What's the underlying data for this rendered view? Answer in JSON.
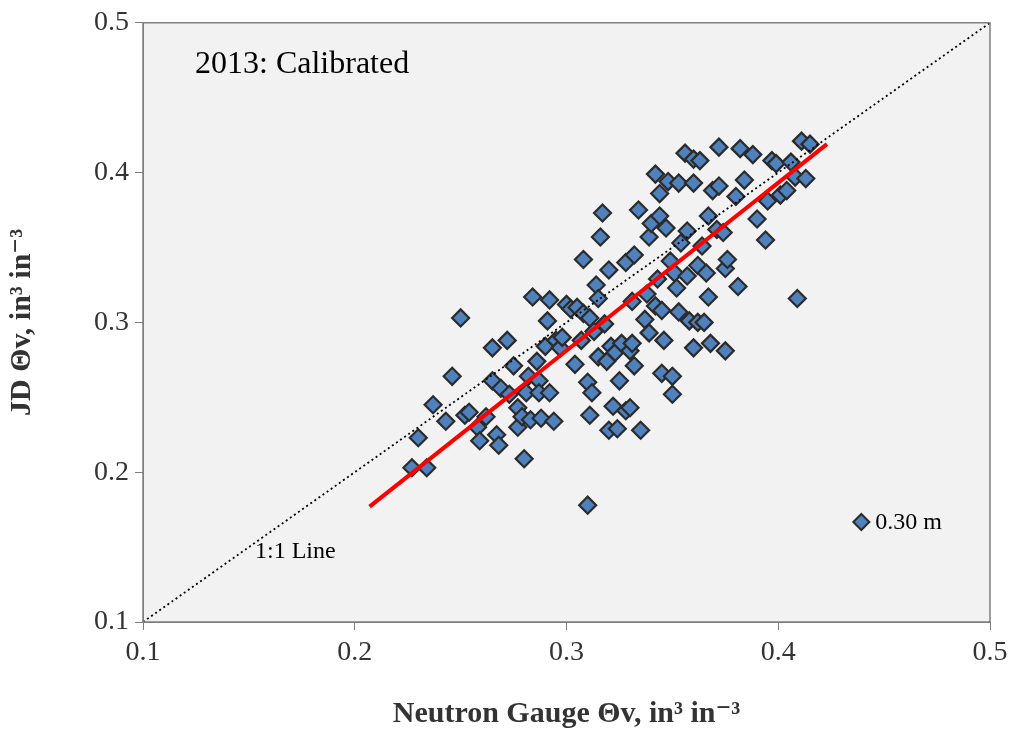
{
  "chart_data": {
    "type": "scatter",
    "xlabel": "Neutron Gauge Θv, in³ in⁻³",
    "ylabel": "JD Θv, in³ in⁻³",
    "xlim": [
      0.1,
      0.5
    ],
    "ylim": [
      0.1,
      0.5
    ],
    "xticks": [
      0.1,
      0.2,
      0.3,
      0.4,
      0.5
    ],
    "yticks": [
      0.1,
      0.2,
      0.3,
      0.4,
      0.5
    ],
    "grid": false,
    "legend": "bottom right",
    "marker": "diamond",
    "annotations": [
      "2013: Calibrated",
      "1:1 Line"
    ],
    "series": [
      {
        "name": "0.30 m",
        "color": "#4f81bd",
        "x": [
          0.227,
          0.23,
          0.234,
          0.237,
          0.243,
          0.246,
          0.25,
          0.252,
          0.254,
          0.258,
          0.259,
          0.262,
          0.265,
          0.265,
          0.267,
          0.268,
          0.269,
          0.273,
          0.272,
          0.275,
          0.277,
          0.277,
          0.279,
          0.28,
          0.281,
          0.282,
          0.283,
          0.284,
          0.286,
          0.287,
          0.287,
          0.288,
          0.29,
          0.291,
          0.292,
          0.292,
          0.294,
          0.295,
          0.297,
          0.298,
          0.3,
          0.302,
          0.304,
          0.305,
          0.307,
          0.308,
          0.308,
          0.31,
          0.31,
          0.311,
          0.311,
          0.312,
          0.313,
          0.314,
          0.315,
          0.317,
          0.316,
          0.315,
          0.318,
          0.319,
          0.32,
          0.32,
          0.321,
          0.322,
          0.323,
          0.324,
          0.325,
          0.326,
          0.328,
          0.328,
          0.33,
          0.33,
          0.331,
          0.331,
          0.332,
          0.332,
          0.334,
          0.335,
          0.337,
          0.338,
          0.339,
          0.339,
          0.34,
          0.342,
          0.342,
          0.343,
          0.344,
          0.344,
          0.345,
          0.345,
          0.346,
          0.347,
          0.348,
          0.349,
          0.35,
          0.35,
          0.351,
          0.352,
          0.353,
          0.353,
          0.354,
          0.356,
          0.357,
          0.357,
          0.358,
          0.36,
          0.36,
          0.36,
          0.362,
          0.362,
          0.363,
          0.364,
          0.365,
          0.366,
          0.367,
          0.367,
          0.369,
          0.371,
          0.372,
          0.372,
          0.374,
          0.375,
          0.376,
          0.38,
          0.381,
          0.382,
          0.384,
          0.388,
          0.39,
          0.394,
          0.395,
          0.397,
          0.399,
          0.401,
          0.404,
          0.406,
          0.408,
          0.411,
          0.413,
          0.415,
          0.409,
          0.375,
          0.368
        ],
        "values": [
          0.203,
          0.223,
          0.203,
          0.245,
          0.234,
          0.264,
          0.303,
          0.238,
          0.24,
          0.23,
          0.221,
          0.237,
          0.283,
          0.261,
          0.225,
          0.218,
          0.256,
          0.252,
          0.288,
          0.271,
          0.243,
          0.23,
          0.237,
          0.209,
          0.253,
          0.264,
          0.235,
          0.317,
          0.274,
          0.261,
          0.253,
          0.236,
          0.284,
          0.301,
          0.315,
          0.253,
          0.234,
          0.288,
          0.283,
          0.29,
          0.312,
          0.309,
          0.272,
          0.31,
          0.288,
          0.342,
          0.306,
          0.178,
          0.26,
          0.238,
          0.303,
          0.253,
          0.294,
          0.325,
          0.277,
          0.373,
          0.357,
          0.316,
          0.299,
          0.274,
          0.335,
          0.228,
          0.284,
          0.244,
          0.28,
          0.229,
          0.261,
          0.286,
          0.34,
          0.241,
          0.243,
          0.281,
          0.314,
          0.286,
          0.271,
          0.345,
          0.375,
          0.228,
          0.302,
          0.319,
          0.357,
          0.293,
          0.366,
          0.399,
          0.311,
          0.329,
          0.386,
          0.371,
          0.308,
          0.266,
          0.288,
          0.363,
          0.394,
          0.341,
          0.264,
          0.252,
          0.333,
          0.323,
          0.393,
          0.307,
          0.353,
          0.413,
          0.331,
          0.361,
          0.301,
          0.409,
          0.283,
          0.393,
          0.3,
          0.338,
          0.408,
          0.351,
          0.3,
          0.333,
          0.371,
          0.317,
          0.388,
          0.362,
          0.417,
          0.391,
          0.36,
          0.336,
          0.342,
          0.384,
          0.324,
          0.416,
          0.395,
          0.412,
          0.369,
          0.355,
          0.381,
          0.408,
          0.406,
          0.385,
          0.388,
          0.407,
          0.397,
          0.421,
          0.396,
          0.419,
          0.316,
          0.281,
          0.286
        ]
      },
      {
        "type": "line",
        "color": "#ff0000",
        "line_style": "solid",
        "marker": "none",
        "x": [
          0.207,
          0.423
        ],
        "values": [
          0.177,
          0.419
        ]
      },
      {
        "type": "line",
        "color": "#000000",
        "line_style": "dotted",
        "marker": "none",
        "x": [
          0.1,
          0.5
        ],
        "values": [
          0.1,
          0.5
        ]
      }
    ]
  }
}
